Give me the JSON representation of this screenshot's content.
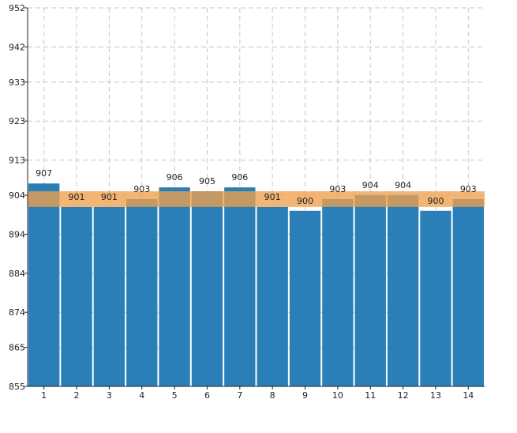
{
  "chart_data": {
    "type": "bar",
    "categories": [
      "1",
      "2",
      "3",
      "4",
      "5",
      "6",
      "7",
      "8",
      "9",
      "10",
      "11",
      "12",
      "13",
      "14"
    ],
    "values": [
      907,
      901,
      901,
      903,
      906,
      905,
      906,
      901,
      900,
      903,
      904,
      904,
      900,
      903
    ],
    "value_labels": [
      "907",
      "901",
      "901",
      "903",
      "906",
      "905",
      "906",
      "901",
      "900",
      "903",
      "904",
      "904",
      "900",
      "903"
    ],
    "y_ticks": [
      855,
      865,
      874,
      884,
      894,
      904,
      913,
      923,
      933,
      942,
      952
    ],
    "ylim": [
      855,
      952
    ],
    "title": "",
    "xlabel": "",
    "ylabel": "",
    "grid": true,
    "band": {
      "low": 901,
      "high": 905
    },
    "colors": {
      "bar": "#2b7fb8",
      "band": "#f0a04b",
      "grid": "#c8c8c8",
      "axis": "#222222"
    }
  }
}
